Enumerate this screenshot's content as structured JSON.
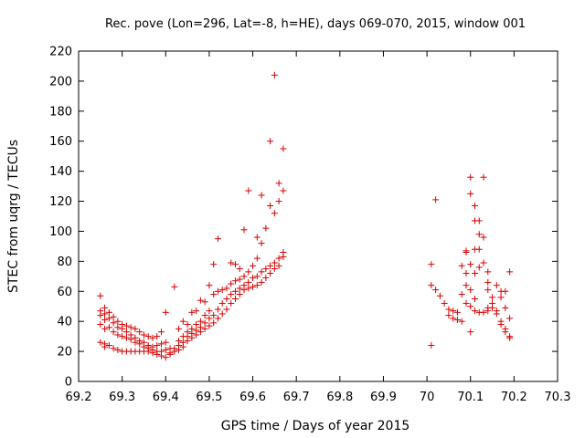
{
  "chart_data": {
    "type": "scatter",
    "title": "Rec. pove (Lon=296, Lat=-8, h=HE), days 069-070, 2015, window 001",
    "xlabel": "GPS time / Days of year 2015",
    "ylabel": "STEC from uqrg / TECUs",
    "xlim": [
      69.2,
      70.3
    ],
    "ylim": [
      0,
      220
    ],
    "xticks": [
      "69.2",
      "69.3",
      "69.4",
      "69.5",
      "69.6",
      "69.7",
      "69.8",
      "69.9",
      "70",
      "70.1",
      "70.2",
      "70.3"
    ],
    "yticks": [
      "0",
      "20",
      "40",
      "60",
      "80",
      "100",
      "120",
      "140",
      "160",
      "180",
      "200",
      "220"
    ],
    "grid": false,
    "legend": "none",
    "marker": "plus",
    "color": "#d40000",
    "points": [
      [
        69.25,
        57
      ],
      [
        69.25,
        47
      ],
      [
        69.25,
        44
      ],
      [
        69.25,
        38
      ],
      [
        69.25,
        26
      ],
      [
        69.26,
        49
      ],
      [
        69.26,
        45
      ],
      [
        69.26,
        41
      ],
      [
        69.26,
        35
      ],
      [
        69.26,
        25
      ],
      [
        69.26,
        23
      ],
      [
        69.27,
        46
      ],
      [
        69.27,
        42
      ],
      [
        69.27,
        36
      ],
      [
        69.27,
        24
      ],
      [
        69.28,
        43
      ],
      [
        69.28,
        39
      ],
      [
        69.28,
        33
      ],
      [
        69.28,
        22
      ],
      [
        69.29,
        40
      ],
      [
        69.29,
        36
      ],
      [
        69.29,
        31
      ],
      [
        69.29,
        21
      ],
      [
        69.3,
        38
      ],
      [
        69.3,
        35
      ],
      [
        69.3,
        30
      ],
      [
        69.3,
        20
      ],
      [
        69.31,
        37
      ],
      [
        69.31,
        33
      ],
      [
        69.31,
        29
      ],
      [
        69.31,
        20
      ],
      [
        69.32,
        36
      ],
      [
        69.32,
        31
      ],
      [
        69.32,
        28
      ],
      [
        69.32,
        20
      ],
      [
        69.33,
        35
      ],
      [
        69.33,
        29
      ],
      [
        69.33,
        26
      ],
      [
        69.33,
        20
      ],
      [
        69.34,
        33
      ],
      [
        69.34,
        27
      ],
      [
        69.34,
        25
      ],
      [
        69.34,
        20
      ],
      [
        69.35,
        31
      ],
      [
        69.35,
        26
      ],
      [
        69.35,
        23
      ],
      [
        69.35,
        20
      ],
      [
        69.36,
        30
      ],
      [
        69.36,
        24
      ],
      [
        69.36,
        22
      ],
      [
        69.36,
        20
      ],
      [
        69.37,
        29
      ],
      [
        69.37,
        23
      ],
      [
        69.37,
        21
      ],
      [
        69.37,
        19
      ],
      [
        69.38,
        30
      ],
      [
        69.38,
        24
      ],
      [
        69.38,
        20
      ],
      [
        69.38,
        18
      ],
      [
        69.39,
        33
      ],
      [
        69.39,
        25
      ],
      [
        69.39,
        20
      ],
      [
        69.39,
        17
      ],
      [
        69.4,
        46
      ],
      [
        69.4,
        26
      ],
      [
        69.4,
        21
      ],
      [
        69.4,
        16
      ],
      [
        69.41,
        22
      ],
      [
        69.41,
        19
      ],
      [
        69.41,
        18
      ],
      [
        69.42,
        63
      ],
      [
        69.42,
        22
      ],
      [
        69.42,
        20
      ],
      [
        69.43,
        35
      ],
      [
        69.43,
        27
      ],
      [
        69.43,
        24
      ],
      [
        69.43,
        21
      ],
      [
        69.44,
        40
      ],
      [
        69.44,
        30
      ],
      [
        69.44,
        26
      ],
      [
        69.44,
        23
      ],
      [
        69.45,
        38
      ],
      [
        69.45,
        33
      ],
      [
        69.45,
        30
      ],
      [
        69.45,
        27
      ],
      [
        69.46,
        46
      ],
      [
        69.46,
        35
      ],
      [
        69.46,
        32
      ],
      [
        69.46,
        29
      ],
      [
        69.47,
        47
      ],
      [
        69.47,
        38
      ],
      [
        69.47,
        34
      ],
      [
        69.47,
        31
      ],
      [
        69.48,
        54
      ],
      [
        69.48,
        40
      ],
      [
        69.48,
        36
      ],
      [
        69.48,
        33
      ],
      [
        69.49,
        53
      ],
      [
        69.49,
        44
      ],
      [
        69.49,
        39
      ],
      [
        69.49,
        35
      ],
      [
        69.5,
        64
      ],
      [
        69.5,
        47
      ],
      [
        69.5,
        42
      ],
      [
        69.5,
        37
      ],
      [
        69.51,
        78
      ],
      [
        69.51,
        58
      ],
      [
        69.51,
        44
      ],
      [
        69.51,
        39
      ],
      [
        69.52,
        95
      ],
      [
        69.52,
        60
      ],
      [
        69.52,
        48
      ],
      [
        69.52,
        42
      ],
      [
        69.53,
        61
      ],
      [
        69.53,
        52
      ],
      [
        69.53,
        45
      ],
      [
        69.54,
        62
      ],
      [
        69.54,
        55
      ],
      [
        69.54,
        48
      ],
      [
        69.55,
        79
      ],
      [
        69.55,
        65
      ],
      [
        69.55,
        58
      ],
      [
        69.55,
        52
      ],
      [
        69.56,
        78
      ],
      [
        69.56,
        67
      ],
      [
        69.56,
        60
      ],
      [
        69.56,
        55
      ],
      [
        69.57,
        75
      ],
      [
        69.57,
        68
      ],
      [
        69.57,
        62
      ],
      [
        69.57,
        58
      ],
      [
        69.58,
        101
      ],
      [
        69.58,
        70
      ],
      [
        69.58,
        64
      ],
      [
        69.58,
        61
      ],
      [
        69.59,
        127
      ],
      [
        69.59,
        73
      ],
      [
        69.59,
        66
      ],
      [
        69.59,
        62
      ],
      [
        69.6,
        77
      ],
      [
        69.6,
        69
      ],
      [
        69.6,
        63
      ],
      [
        69.61,
        96
      ],
      [
        69.61,
        82
      ],
      [
        69.61,
        70
      ],
      [
        69.61,
        64
      ],
      [
        69.62,
        124
      ],
      [
        69.62,
        92
      ],
      [
        69.62,
        73
      ],
      [
        69.62,
        66
      ],
      [
        69.63,
        102
      ],
      [
        69.63,
        75
      ],
      [
        69.63,
        69
      ],
      [
        69.64,
        160
      ],
      [
        69.64,
        117
      ],
      [
        69.64,
        77
      ],
      [
        69.64,
        72
      ],
      [
        69.65,
        204
      ],
      [
        69.65,
        112
      ],
      [
        69.65,
        79
      ],
      [
        69.65,
        75
      ],
      [
        69.66,
        132
      ],
      [
        69.66,
        120
      ],
      [
        69.66,
        82
      ],
      [
        69.66,
        77
      ],
      [
        69.67,
        155
      ],
      [
        69.67,
        127
      ],
      [
        69.67,
        86
      ],
      [
        69.67,
        83
      ],
      [
        70.01,
        78
      ],
      [
        70.01,
        64
      ],
      [
        70.01,
        24
      ],
      [
        70.02,
        121
      ],
      [
        70.02,
        61
      ],
      [
        70.03,
        57
      ],
      [
        70.04,
        52
      ],
      [
        70.05,
        48
      ],
      [
        70.05,
        44
      ],
      [
        70.06,
        47
      ],
      [
        70.06,
        42
      ],
      [
        70.07,
        46
      ],
      [
        70.07,
        41
      ],
      [
        70.08,
        77
      ],
      [
        70.08,
        58
      ],
      [
        70.08,
        40
      ],
      [
        70.09,
        87
      ],
      [
        70.09,
        86
      ],
      [
        70.09,
        72
      ],
      [
        70.09,
        64
      ],
      [
        70.09,
        52
      ],
      [
        70.1,
        136
      ],
      [
        70.1,
        125
      ],
      [
        70.1,
        78
      ],
      [
        70.1,
        61
      ],
      [
        70.1,
        50
      ],
      [
        70.1,
        33
      ],
      [
        70.11,
        117
      ],
      [
        70.11,
        107
      ],
      [
        70.11,
        88
      ],
      [
        70.11,
        72
      ],
      [
        70.11,
        55
      ],
      [
        70.11,
        47
      ],
      [
        70.12,
        107
      ],
      [
        70.12,
        98
      ],
      [
        70.12,
        88
      ],
      [
        70.12,
        76
      ],
      [
        70.12,
        46
      ],
      [
        70.13,
        136
      ],
      [
        70.13,
        96
      ],
      [
        70.13,
        79
      ],
      [
        70.13,
        46
      ],
      [
        70.14,
        73
      ],
      [
        70.14,
        66
      ],
      [
        70.14,
        61
      ],
      [
        70.14,
        49
      ],
      [
        70.14,
        47
      ],
      [
        70.15,
        56
      ],
      [
        70.15,
        52
      ],
      [
        70.15,
        49
      ],
      [
        70.16,
        64
      ],
      [
        70.16,
        47
      ],
      [
        70.16,
        45
      ],
      [
        70.17,
        60
      ],
      [
        70.17,
        56
      ],
      [
        70.17,
        40
      ],
      [
        70.17,
        38
      ],
      [
        70.18,
        60
      ],
      [
        70.18,
        49
      ],
      [
        70.18,
        35
      ],
      [
        70.18,
        33
      ],
      [
        70.19,
        73
      ],
      [
        70.19,
        42
      ],
      [
        70.19,
        30
      ],
      [
        70.19,
        29
      ]
    ]
  }
}
